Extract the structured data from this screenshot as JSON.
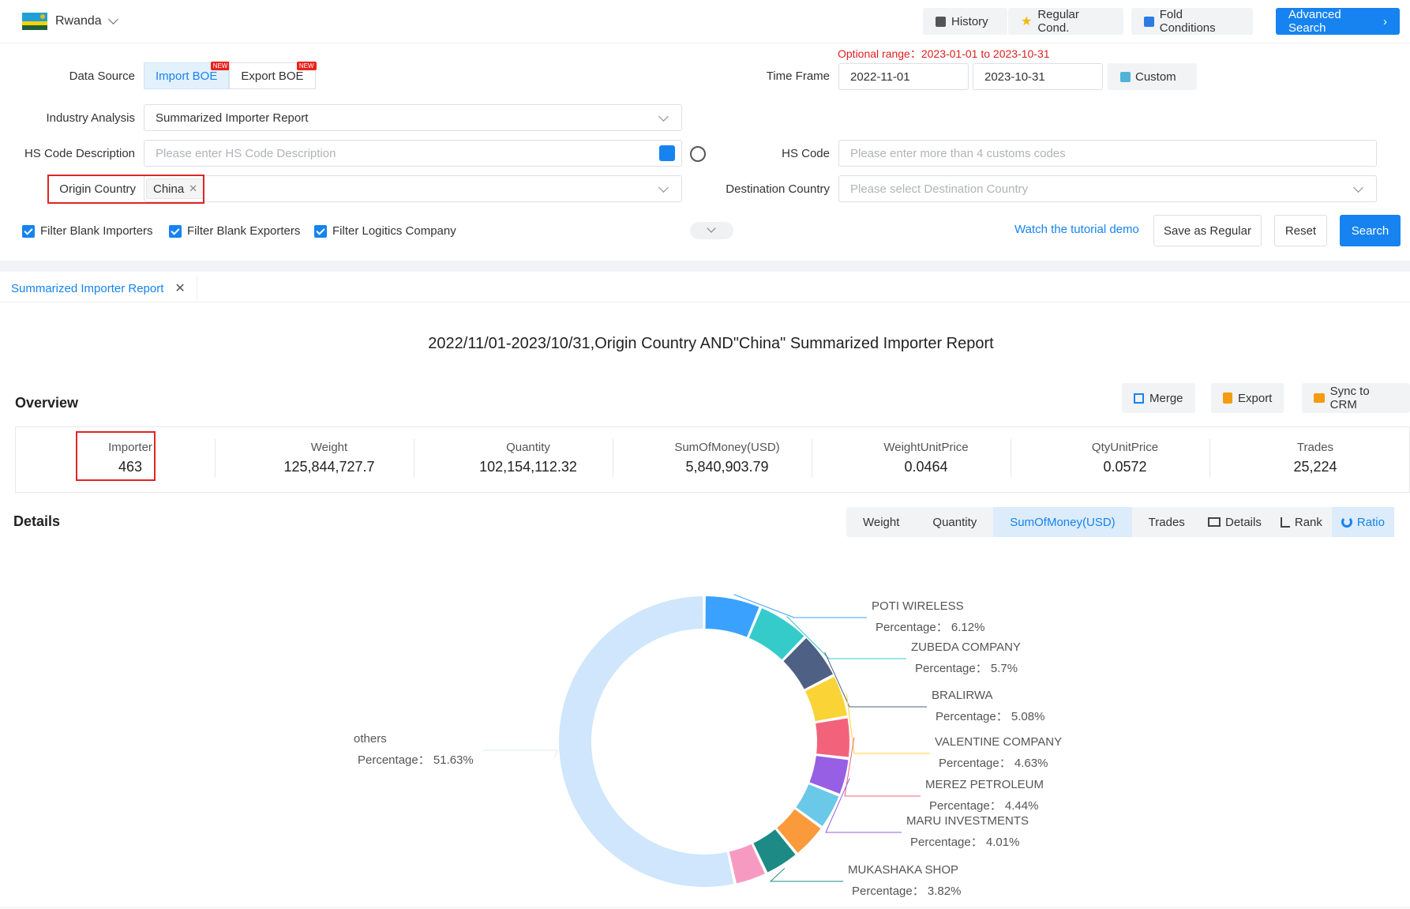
{
  "topbar": {
    "country": "Rwanda",
    "history": "History",
    "regular_cond": "Regular Cond.",
    "fold_conditions": "Fold Conditions",
    "advanced_search": "Advanced Search"
  },
  "form": {
    "data_source_label": "Data Source",
    "import_boe": "Import BOE",
    "export_boe": "Export BOE",
    "new_tag": "NEW",
    "optional_range": "Optional range：2023-01-01 to 2023-10-31",
    "time_frame_label": "Time Frame",
    "date_from": "2022-11-01",
    "date_to": "2023-10-31",
    "custom": "Custom",
    "industry_label": "Industry Analysis",
    "industry_value": "Summarized Importer Report",
    "hs_desc_label": "HS Code Description",
    "hs_desc_placeholder": "Please enter HS Code Description",
    "hs_code_label": "HS Code",
    "hs_code_placeholder": "Please enter more than 4 customs codes",
    "origin_label": "Origin Country",
    "origin_value": "China",
    "dest_label": "Destination Country",
    "dest_placeholder": "Please select Destination Country",
    "filter_importers": "Filter Blank Importers",
    "filter_exporters": "Filter Blank Exporters",
    "filter_logistics": "Filter Logitics Company",
    "tutorial_link": "Watch the tutorial demo",
    "save_regular": "Save as Regular",
    "reset": "Reset",
    "search": "Search"
  },
  "tab": {
    "label": "Summarized Importer Report"
  },
  "report": {
    "title": "2022/11/01-2023/10/31,Origin Country AND\"China\" Summarized Importer Report",
    "overview_label": "Overview",
    "merge": "Merge",
    "export": "Export",
    "sync_crm": "Sync to CRM",
    "stats": [
      {
        "key": "Importer",
        "value": "463"
      },
      {
        "key": "Weight",
        "value": "125,844,727.7"
      },
      {
        "key": "Quantity",
        "value": "102,154,112.32"
      },
      {
        "key": "SumOfMoney(USD)",
        "value": "5,840,903.79"
      },
      {
        "key": "WeightUnitPrice",
        "value": "0.0464"
      },
      {
        "key": "QtyUnitPrice",
        "value": "0.0572"
      },
      {
        "key": "Trades",
        "value": "25,224"
      }
    ],
    "details_label": "Details",
    "metrics": [
      "Weight",
      "Quantity",
      "SumOfMoney(USD)",
      "Trades"
    ],
    "views": [
      "Details",
      "Rank",
      "Ratio"
    ]
  },
  "chart_data": {
    "type": "pie",
    "value_label": "Percentage：",
    "slices": [
      {
        "name": "POTI WIRELESS",
        "percent": 6.12,
        "label": "6.12%",
        "color": "#3ba1ff"
      },
      {
        "name": "ZUBEDA COMPANY",
        "percent": 5.7,
        "label": "5.7%",
        "color": "#36cbcb"
      },
      {
        "name": "BRALIRWA",
        "percent": 5.08,
        "label": "5.08%",
        "color": "#4e6184"
      },
      {
        "name": "VALENTINE COMPANY",
        "percent": 4.63,
        "label": "4.63%",
        "color": "#fad337"
      },
      {
        "name": "MEREZ PETROLEUM",
        "percent": 4.44,
        "label": "4.44%",
        "color": "#f2637b"
      },
      {
        "name": "MARU INVESTMENTS",
        "percent": 4.01,
        "label": "4.01%",
        "color": "#975fe4"
      },
      {
        "name": "",
        "percent": 3.9,
        "label": "",
        "color": "#6ac8e8"
      },
      {
        "name": "",
        "percent": 3.85,
        "label": "",
        "color": "#fa9a3b"
      },
      {
        "name": "MUKASHAKA SHOP",
        "percent": 3.82,
        "label": "3.82%",
        "color": "#1e8a86"
      },
      {
        "name": "",
        "percent": 3.5,
        "label": "",
        "color": "#f79ac2"
      },
      {
        "name": "others",
        "percent": 51.63,
        "label": "51.63%",
        "color": "#cfe6fc"
      }
    ]
  }
}
